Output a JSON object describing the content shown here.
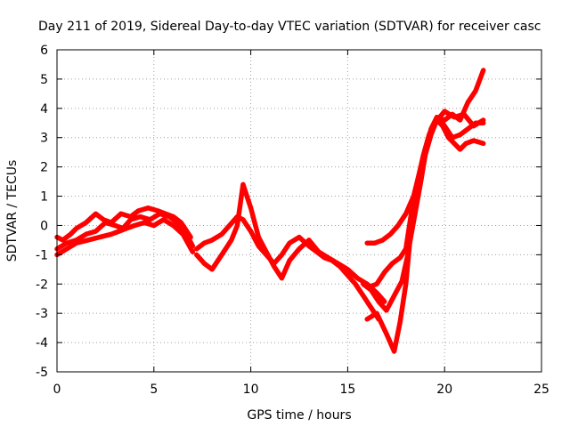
{
  "chart_data": {
    "type": "line",
    "title": "Day 211 of 2019, Sidereal Day-to-day VTEC variation (SDTVAR) for receiver casc",
    "xlabel": "GPS time / hours",
    "ylabel": "SDTVAR / TECUs",
    "xlim": [
      0,
      25
    ],
    "ylim": [
      -5,
      6
    ],
    "xticks": [
      "0",
      "5",
      "10",
      "15",
      "20",
      "25"
    ],
    "yticks": [
      "-5",
      "-4",
      "-3",
      "-2",
      "-1",
      "0",
      "1",
      "2",
      "3",
      "4",
      "5",
      "6"
    ],
    "grid": true,
    "color": "#ff0000",
    "series": [
      {
        "name": "s1",
        "x": [
          0,
          0.3,
          0.7,
          1,
          1.5,
          2,
          2.4,
          2.8,
          3.3,
          3.8,
          4.2,
          4.7,
          5.2,
          5.6,
          6,
          6.4,
          6.9
        ],
        "y": [
          -0.4,
          -0.5,
          -0.3,
          -0.1,
          0.1,
          0.4,
          0.2,
          0.1,
          0.4,
          0.3,
          0.5,
          0.6,
          0.5,
          0.4,
          0.3,
          0.1,
          -0.4
        ]
      },
      {
        "name": "s2",
        "x": [
          0,
          0.5,
          1,
          1.5,
          2,
          2.5,
          3,
          3.4,
          3.8,
          4.3,
          4.8,
          5.3,
          5.8,
          6.2,
          6.6,
          7
        ],
        "y": [
          -0.8,
          -0.6,
          -0.5,
          -0.3,
          -0.2,
          0.1,
          0.0,
          -0.1,
          0.2,
          0.3,
          0.2,
          0.4,
          0.3,
          0.1,
          -0.2,
          -0.7
        ]
      },
      {
        "name": "s3",
        "x": [
          0,
          0.5,
          1,
          1.6,
          2.2,
          2.8,
          3.2,
          3.6,
          4,
          4.5,
          5,
          5.5,
          6,
          6.5,
          7
        ],
        "y": [
          -1.0,
          -0.8,
          -0.6,
          -0.5,
          -0.4,
          -0.3,
          -0.2,
          -0.1,
          0.0,
          0.1,
          0.0,
          0.2,
          0.0,
          -0.3,
          -0.9
        ]
      },
      {
        "name": "s4",
        "x": [
          7.2,
          7.6,
          8,
          8.5,
          8.9,
          9.3,
          9.6,
          10,
          10.4,
          10.8,
          11.2,
          11.6,
          12,
          12.5,
          13,
          13.4,
          13.8,
          14.2,
          14.6,
          15,
          15.4,
          15.8,
          16.2,
          16.6
        ],
        "y": [
          -0.8,
          -0.6,
          -0.5,
          -0.3,
          0.0,
          0.3,
          0.2,
          -0.2,
          -0.7,
          -1.0,
          -1.3,
          -1.0,
          -0.6,
          -0.4,
          -0.7,
          -0.9,
          -1.1,
          -1.2,
          -1.4,
          -1.7,
          -2.0,
          -2.4,
          -2.8,
          -3.2
        ]
      },
      {
        "name": "s5",
        "x": [
          7.2,
          7.6,
          8,
          8.5,
          9,
          9.3,
          9.6,
          10,
          10.4,
          10.8,
          11.2,
          11.6,
          12,
          12.5,
          13,
          13.5,
          14,
          14.5,
          15,
          15.5,
          16,
          16.5,
          16.9
        ],
        "y": [
          -1.0,
          -1.3,
          -1.5,
          -1.0,
          -0.5,
          0.0,
          1.4,
          0.6,
          -0.4,
          -0.9,
          -1.4,
          -1.8,
          -1.2,
          -0.8,
          -0.5,
          -0.9,
          -1.1,
          -1.3,
          -1.5,
          -1.8,
          -2.0,
          -2.3,
          -2.6
        ]
      },
      {
        "name": "s6",
        "x": [
          16,
          16.4,
          16.8,
          17.2,
          17.6,
          18,
          18.4,
          18.7,
          19,
          19.3,
          19.6,
          20,
          20.4,
          20.8,
          21.2,
          21.6,
          22
        ],
        "y": [
          -0.6,
          -0.6,
          -0.5,
          -0.3,
          0.0,
          0.4,
          1.0,
          1.8,
          2.6,
          3.3,
          3.7,
          3.6,
          3.8,
          3.6,
          4.2,
          4.6,
          5.3
        ]
      },
      {
        "name": "s7",
        "x": [
          16.1,
          16.5,
          16.9,
          17.3,
          17.7,
          18,
          18.3,
          18.6,
          18.9,
          19.2,
          19.5,
          19.8,
          20.1,
          20.4,
          20.8,
          21.2,
          21.6,
          22
        ],
        "y": [
          -2.1,
          -2.0,
          -1.6,
          -1.3,
          -1.1,
          -0.8,
          0.5,
          1.5,
          2.4,
          3.1,
          3.5,
          3.6,
          3.3,
          3.0,
          3.1,
          3.3,
          3.5,
          3.5
        ]
      },
      {
        "name": "s8",
        "x": [
          15.8,
          16.2,
          16.6,
          17,
          17.4,
          17.8,
          18.1,
          18.4,
          18.7,
          19,
          19.3,
          19.6,
          19.9,
          20.2,
          20.5,
          20.8,
          21.1,
          21.5,
          22
        ],
        "y": [
          -2.0,
          -2.2,
          -2.6,
          -2.9,
          -2.4,
          -1.9,
          -1.0,
          0.3,
          1.5,
          2.4,
          3.1,
          3.6,
          3.4,
          3.0,
          2.8,
          2.6,
          2.8,
          2.9,
          2.8
        ]
      },
      {
        "name": "s9",
        "x": [
          16,
          16.5,
          17,
          17.4,
          17.7,
          18,
          18.2,
          18.5,
          18.8,
          19.1,
          19.5,
          20,
          20.5,
          21,
          21.5,
          22
        ],
        "y": [
          -3.2,
          -3.0,
          -3.7,
          -4.3,
          -3.3,
          -2.0,
          -0.6,
          0.5,
          1.6,
          2.8,
          3.5,
          3.9,
          3.7,
          3.8,
          3.4,
          3.6
        ]
      }
    ]
  }
}
